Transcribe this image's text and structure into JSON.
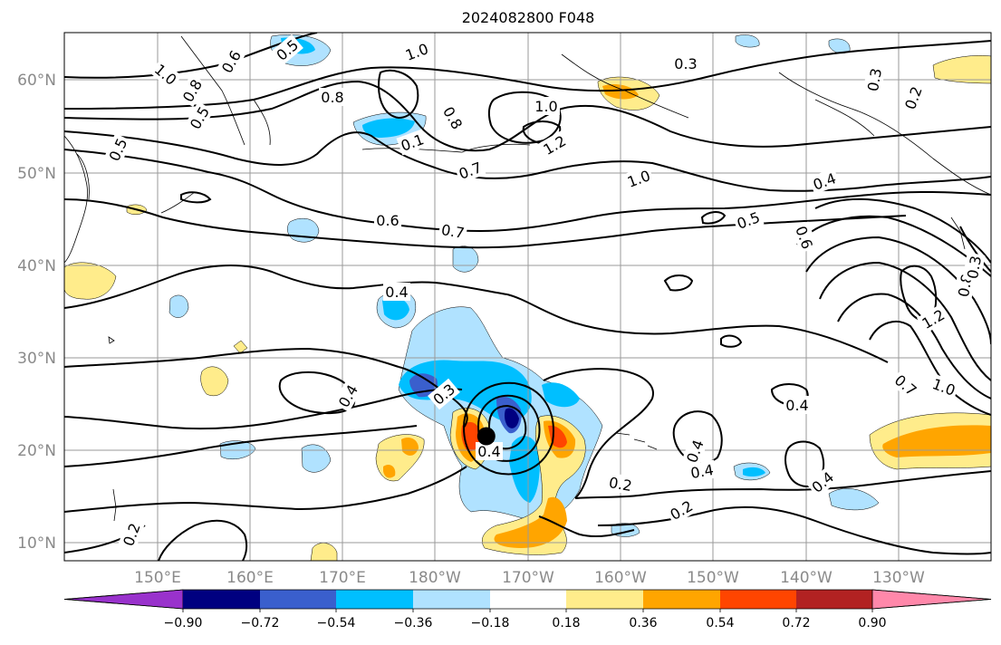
{
  "map": {
    "title": "2024082800 F048",
    "lat_labels": [
      "60°N",
      "50°N",
      "40°N",
      "30°N",
      "20°N",
      "10°N"
    ],
    "lon_labels": [
      "150°E",
      "160°E",
      "170°E",
      "180°W",
      "170°W",
      "160°W",
      "150°W",
      "140°W",
      "130°W"
    ],
    "contour_labels": [
      {
        "text": "0.5"
      },
      {
        "text": "1.0"
      },
      {
        "text": "0.6"
      },
      {
        "text": "0.8"
      },
      {
        "text": "0.5"
      },
      {
        "text": "0.5"
      },
      {
        "text": "1.0"
      },
      {
        "text": "0.8"
      },
      {
        "text": "0.1"
      },
      {
        "text": "0.8"
      },
      {
        "text": "1.0"
      },
      {
        "text": "1.2"
      },
      {
        "text": "0.7"
      },
      {
        "text": "0.3"
      },
      {
        "text": "0.3"
      },
      {
        "text": "0.2"
      },
      {
        "text": "1.0"
      },
      {
        "text": "0.4"
      },
      {
        "text": "0.6"
      },
      {
        "text": "0.7"
      },
      {
        "text": "0.5"
      },
      {
        "text": "0.6"
      },
      {
        "text": "0.4"
      },
      {
        "text": "1.2"
      },
      {
        "text": "0.8"
      },
      {
        "text": "0.3"
      },
      {
        "text": "0.4"
      },
      {
        "text": "0.4"
      },
      {
        "text": "0.3"
      },
      {
        "text": "0.4"
      },
      {
        "text": "0.7"
      },
      {
        "text": "1.0"
      },
      {
        "text": "0.4"
      },
      {
        "text": "0.2"
      },
      {
        "text": "0.4"
      },
      {
        "text": "0.2"
      },
      {
        "text": "0.4"
      },
      {
        "text": "0.2"
      }
    ],
    "storm_marker": {
      "lat": 21.5,
      "lon": -174.5
    }
  },
  "colorbar": {
    "colors": [
      "#9932cc",
      "#000080",
      "#3a5fcd",
      "#00bfff",
      "#b0e2ff",
      "#ffffff",
      "#ffec8b",
      "#ffa500",
      "#ff4500",
      "#b22222",
      "#ff88aa",
      "#ff88aa"
    ],
    "tick_labels": [
      "−0.90",
      "−0.72",
      "−0.54",
      "−0.36",
      "−0.18",
      "0.18",
      "0.36",
      "0.54",
      "0.72",
      "0.90"
    ]
  }
}
